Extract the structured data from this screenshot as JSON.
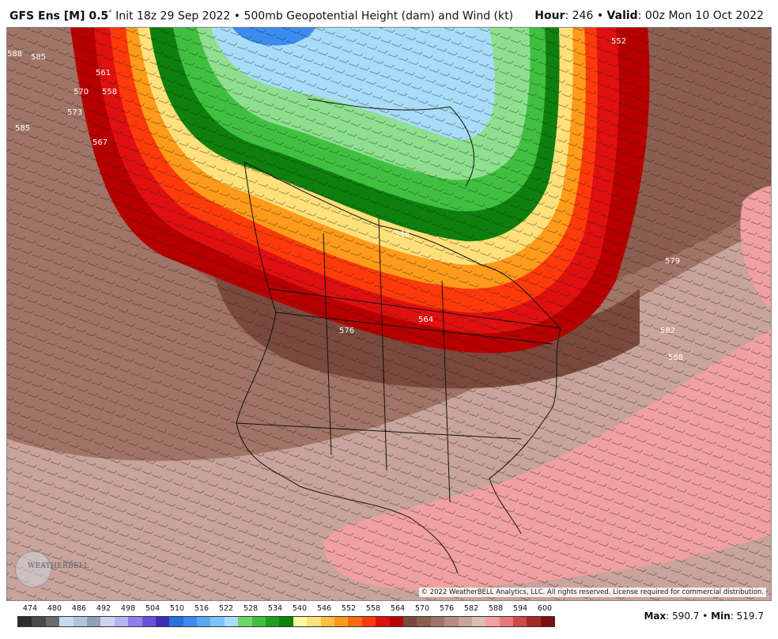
{
  "header": {
    "model": "GFS Ens [M] 0.5",
    "degree": "°",
    "init": "Init 18z 29 Sep 2022",
    "sep": "•",
    "product": "500mb Geopotential Height (dam) and Wind (kt)",
    "hour_label": "Hour",
    "hour_value": ": 246",
    "valid_label": "Valid",
    "valid_value": ": 00z Mon 10 Oct 2022"
  },
  "map": {
    "copyright": "© 2022 WeatherBELL Analytics, LLC. All rights reserved. License required for commercial distribution.",
    "logo_text": "WEATHERBELL",
    "contour_labels": [
      "561",
      "558",
      "570",
      "573",
      "567",
      "552",
      "546",
      "564",
      "576",
      "588",
      "585",
      "579",
      "582",
      "588",
      "585"
    ]
  },
  "colorbar": {
    "labels": [
      "474",
      "480",
      "486",
      "492",
      "498",
      "504",
      "510",
      "516",
      "522",
      "528",
      "534",
      "540",
      "546",
      "552",
      "558",
      "564",
      "570",
      "576",
      "582",
      "588",
      "594",
      "600"
    ],
    "colors": [
      "#2b2b2b",
      "#4a4a4a",
      "#6a6a6a",
      "#c7d9ef",
      "#b0c4de",
      "#8fa0b4",
      "#d0d0f0",
      "#b4b4f5",
      "#8c82e8",
      "#6a50d8",
      "#3b2fb8",
      "#2a6fe0",
      "#3c8cf0",
      "#5aa8f5",
      "#7cc4f8",
      "#a8dcf8",
      "#6cd66c",
      "#40c040",
      "#1ea01e",
      "#0e800e",
      "#fffaa0",
      "#ffe07a",
      "#ffbf40",
      "#ff9a1a",
      "#ff6a10",
      "#ff3a0a",
      "#e01010",
      "#b80000",
      "#7a4a3e",
      "#8c5e50",
      "#a07466",
      "#b48c80",
      "#c8a49a",
      "#dcbcb4",
      "#f0a0a0",
      "#e87878",
      "#d04848",
      "#a82828",
      "#7a1010"
    ]
  },
  "stats": {
    "max_label": "Max",
    "max_value": ": 590.7",
    "min_label": "Min",
    "min_value": ": 519.7",
    "sep": "•"
  }
}
